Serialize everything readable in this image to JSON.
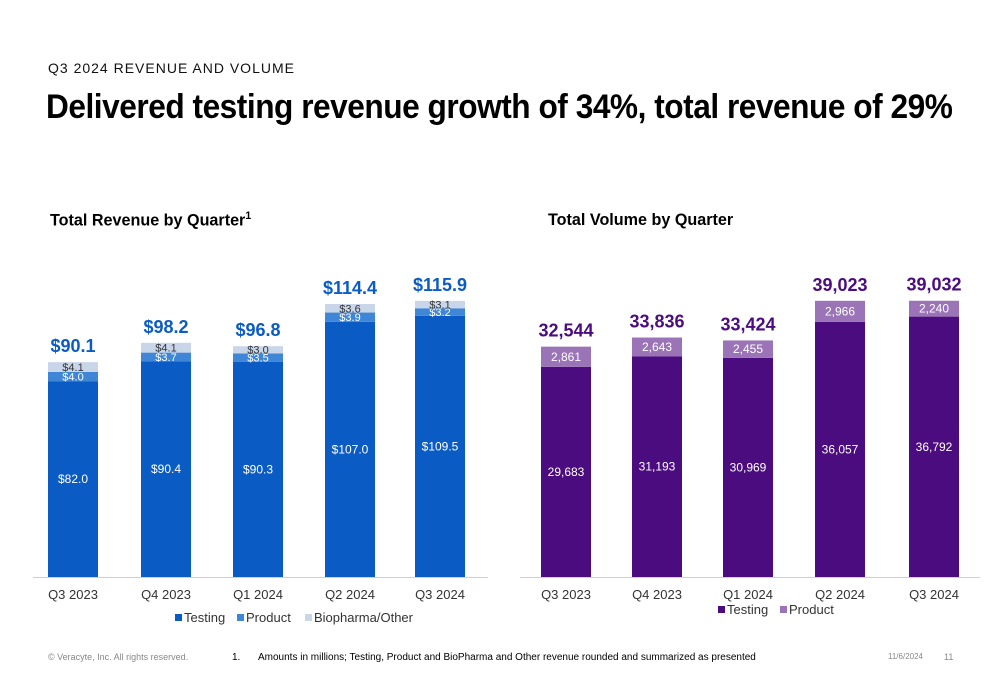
{
  "header": {
    "eyebrow": "Q3 2024 REVENUE AND VOLUME",
    "title": "Delivered testing revenue growth of 34%, total revenue of 29%"
  },
  "footer": {
    "copyright": "© Veracyte, Inc.  All rights reserved.",
    "footnote_number": "1.",
    "footnote_text": "Amounts in millions; Testing, Product and BioPharma and Other revenue rounded and summarized as presented",
    "date": "11/6/2024",
    "page": "11"
  },
  "colors": {
    "testing_blue": "#0a5cc4",
    "product_blue": "#3f86d6",
    "biopharma": "#c9d6ea",
    "total_blue": "#0a5cc4",
    "volume_testing": "#4b0c7f",
    "volume_product": "#9a74b7",
    "volume_total": "#4b0c7f"
  },
  "chart_data": [
    {
      "type": "bar",
      "stacked": true,
      "title": "Total Revenue by Quarter",
      "title_superscript": "1",
      "categories": [
        "Q3 2023",
        "Q4 2023",
        "Q1 2024",
        "Q2 2024",
        "Q3 2024"
      ],
      "series": [
        {
          "name": "Testing",
          "values": [
            82.0,
            90.4,
            90.3,
            107.0,
            109.5
          ],
          "labels": [
            "$82.0",
            "$90.4",
            "$90.3",
            "$107.0",
            "$109.5"
          ]
        },
        {
          "name": "Product",
          "values": [
            4.0,
            3.7,
            3.5,
            3.9,
            3.2
          ],
          "labels": [
            "$4.0",
            "$3.7",
            "$3.5",
            "$3.9",
            "$3.2"
          ]
        },
        {
          "name": "Biopharma/Other",
          "values": [
            4.1,
            4.1,
            3.0,
            3.6,
            3.1
          ],
          "labels": [
            "$4.1",
            "$4.1",
            "$3.0",
            "$3.6",
            "$3.1"
          ]
        }
      ],
      "totals": [
        "$90.1",
        "$98.2",
        "$96.8",
        "$114.4",
        "$115.9"
      ],
      "ylim": [
        0,
        130
      ],
      "legend": "bottom"
    },
    {
      "type": "bar",
      "stacked": true,
      "title": "Total Volume by Quarter",
      "categories": [
        "Q3 2023",
        "Q4 2023",
        "Q1 2024",
        "Q2 2024",
        "Q3 2024"
      ],
      "series": [
        {
          "name": "Testing",
          "values": [
            29683,
            31193,
            30969,
            36057,
            36792
          ],
          "labels": [
            "29,683",
            "31,193",
            "30,969",
            "36,057",
            "36,792"
          ]
        },
        {
          "name": "Product",
          "values": [
            2861,
            2643,
            2455,
            2966,
            2240
          ],
          "labels": [
            "2,861",
            "2,643",
            "2,455",
            "2,966",
            "2,240"
          ]
        }
      ],
      "totals": [
        "32,544",
        "33,836",
        "33,424",
        "39,023",
        "39,032"
      ],
      "ylim": [
        0,
        43800
      ],
      "legend": "bottom"
    }
  ]
}
